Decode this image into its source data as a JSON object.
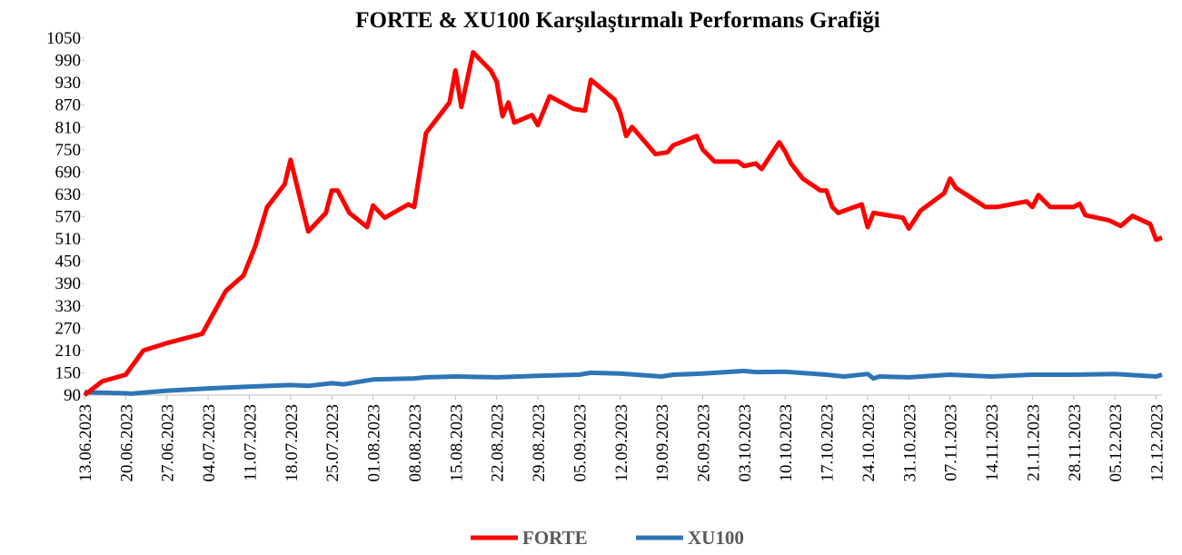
{
  "chart_data": {
    "type": "line",
    "title": "FORTE & XU100 Karşılaştırmalı Performans Grafiği",
    "xlim": [
      "13.06.2023",
      "13.12.2023"
    ],
    "xticks": [
      "13.06.2023",
      "20.06.2023",
      "27.06.2023",
      "04.07.2023",
      "11.07.2023",
      "18.07.2023",
      "25.07.2023",
      "01.08.2023",
      "08.08.2023",
      "15.08.2023",
      "22.08.2023",
      "29.08.2023",
      "05.09.2023",
      "12.09.2023",
      "19.09.2023",
      "26.09.2023",
      "03.10.2023",
      "10.10.2023",
      "17.10.2023",
      "24.10.2023",
      "31.10.2023",
      "07.11.2023",
      "14.11.2023",
      "21.11.2023",
      "28.11.2023",
      "05.12.2023",
      "12.12.2023"
    ],
    "ylim": [
      90,
      1050
    ],
    "yticks": [
      90,
      150,
      210,
      270,
      330,
      390,
      450,
      510,
      570,
      630,
      690,
      750,
      810,
      870,
      930,
      990,
      1050
    ],
    "legend": "bottom",
    "series": [
      {
        "name": "FORTE",
        "color": "#ff0000",
        "x": [
          "13.06.2023",
          "16.06.2023",
          "20.06.2023",
          "23.06.2023",
          "27.06.2023",
          "03.07.2023",
          "07.07.2023",
          "10.07.2023",
          "12.07.2023",
          "14.07.2023",
          "17.07.2023",
          "18.07.2023",
          "21.07.2023",
          "24.07.2023",
          "25.07.2023",
          "26.07.2023",
          "28.07.2023",
          "31.07.2023",
          "01.08.2023",
          "03.08.2023",
          "07.08.2023",
          "08.08.2023",
          "10.08.2023",
          "14.08.2023",
          "15.08.2023",
          "16.08.2023",
          "18.08.2023",
          "21.08.2023",
          "22.08.2023",
          "23.08.2023",
          "24.08.2023",
          "25.08.2023",
          "28.08.2023",
          "29.08.2023",
          "31.08.2023",
          "04.09.2023",
          "06.09.2023",
          "07.09.2023",
          "11.09.2023",
          "12.09.2023",
          "13.09.2023",
          "14.09.2023",
          "18.09.2023",
          "20.09.2023",
          "21.09.2023",
          "25.09.2023",
          "26.09.2023",
          "28.09.2023",
          "02.10.2023",
          "03.10.2023",
          "05.10.2023",
          "06.10.2023",
          "09.10.2023",
          "10.10.2023",
          "11.10.2023",
          "13.10.2023",
          "16.10.2023",
          "17.10.2023",
          "18.10.2023",
          "19.10.2023",
          "23.10.2023",
          "24.10.2023",
          "25.10.2023",
          "30.10.2023",
          "31.10.2023",
          "02.11.2023",
          "06.11.2023",
          "07.11.2023",
          "08.11.2023",
          "13.11.2023",
          "15.11.2023",
          "20.11.2023",
          "21.11.2023",
          "22.11.2023",
          "24.11.2023",
          "28.11.2023",
          "29.11.2023",
          "30.11.2023",
          "04.12.2023",
          "06.12.2023",
          "08.12.2023",
          "11.12.2023",
          "12.12.2023",
          "13.12.2023"
        ],
        "values": [
          90,
          127,
          145,
          210,
          230,
          255,
          370,
          412,
          490,
          595,
          657,
          723,
          530,
          580,
          640,
          640,
          580,
          542,
          600,
          567,
          603,
          596,
          795,
          877,
          963,
          865,
          1012,
          963,
          933,
          840,
          877,
          823,
          843,
          816,
          894,
          860,
          855,
          938,
          885,
          848,
          787,
          811,
          738,
          743,
          762,
          787,
          750,
          718,
          718,
          706,
          713,
          698,
          770,
          745,
          713,
          672,
          640,
          640,
          596,
          580,
          603,
          542,
          580,
          567,
          538,
          586,
          633,
          672,
          647,
          596,
          596,
          611,
          596,
          628,
          596,
          596,
          605,
          574,
          560,
          545,
          572,
          550,
          508,
          513
        ]
      },
      {
        "name": "XU100",
        "color": "#2e75b6",
        "x": [
          "13.06.2023",
          "20.06.2023",
          "21.06.2023",
          "27.06.2023",
          "04.07.2023",
          "11.07.2023",
          "18.07.2023",
          "21.07.2023",
          "25.07.2023",
          "27.07.2023",
          "01.08.2023",
          "08.08.2023",
          "10.08.2023",
          "15.08.2023",
          "22.08.2023",
          "29.08.2023",
          "05.09.2023",
          "07.09.2023",
          "12.09.2023",
          "19.09.2023",
          "21.09.2023",
          "26.09.2023",
          "03.10.2023",
          "05.10.2023",
          "10.10.2023",
          "17.10.2023",
          "20.10.2023",
          "24.10.2023",
          "25.10.2023",
          "26.10.2023",
          "31.10.2023",
          "07.11.2023",
          "14.11.2023",
          "21.11.2023",
          "28.11.2023",
          "05.12.2023",
          "12.12.2023",
          "13.12.2023"
        ],
        "values": [
          98,
          95,
          94,
          102,
          108,
          113,
          117,
          115,
          122,
          119,
          132,
          135,
          138,
          140,
          138,
          142,
          145,
          150,
          148,
          140,
          145,
          148,
          155,
          152,
          153,
          145,
          140,
          147,
          135,
          140,
          138,
          145,
          140,
          145,
          145,
          147,
          140,
          145
        ]
      }
    ]
  }
}
